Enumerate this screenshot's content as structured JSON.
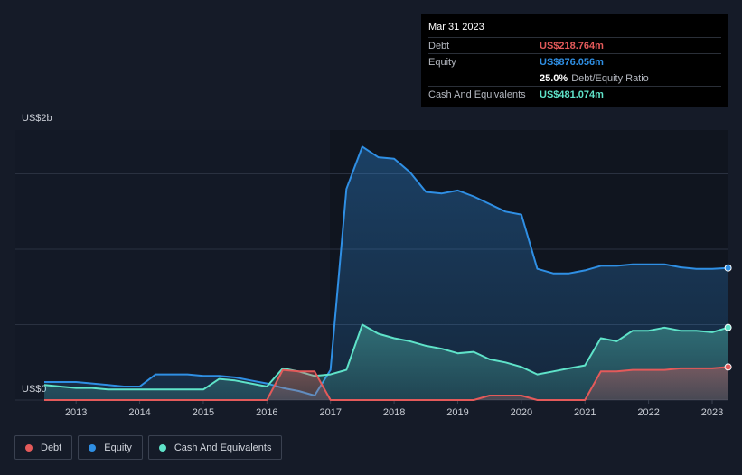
{
  "chart_data": {
    "type": "area",
    "x": [
      2012.5,
      2012.75,
      2013,
      2013.25,
      2013.5,
      2013.75,
      2014,
      2014.25,
      2014.5,
      2014.75,
      2015,
      2015.25,
      2015.5,
      2015.75,
      2016,
      2016.25,
      2016.5,
      2016.75,
      2017,
      2017.25,
      2017.5,
      2017.75,
      2018,
      2018.25,
      2018.5,
      2018.75,
      2019,
      2019.25,
      2019.5,
      2019.75,
      2020,
      2020.25,
      2020.5,
      2020.75,
      2021,
      2021.25,
      2021.5,
      2021.75,
      2022,
      2022.25,
      2022.5,
      2022.75,
      2023,
      2023.25
    ],
    "xlim": [
      2012.5,
      2023.25
    ],
    "xticks": [
      2013,
      2014,
      2015,
      2016,
      2017,
      2018,
      2019,
      2020,
      2021,
      2022,
      2023
    ],
    "ylim": [
      0,
      2
    ],
    "yticks": [
      {
        "value": 0,
        "label": "US$0"
      },
      {
        "value": 2,
        "label": "US$2b"
      }
    ],
    "grid": true,
    "series": [
      {
        "name": "Equity",
        "color": "#2f8fe4",
        "values": [
          0.12,
          0.12,
          0.12,
          0.11,
          0.1,
          0.09,
          0.09,
          0.17,
          0.17,
          0.17,
          0.16,
          0.16,
          0.15,
          0.13,
          0.11,
          0.08,
          0.06,
          0.03,
          0.2,
          1.4,
          1.68,
          1.61,
          1.6,
          1.51,
          1.38,
          1.37,
          1.39,
          1.35,
          1.3,
          1.25,
          1.23,
          0.87,
          0.84,
          0.84,
          0.86,
          0.89,
          0.89,
          0.9,
          0.9,
          0.9,
          0.88,
          0.87,
          0.87,
          0.876
        ]
      },
      {
        "name": "Cash And Equivalents",
        "color": "#5fe3c9",
        "values": [
          0.1,
          0.09,
          0.08,
          0.08,
          0.07,
          0.07,
          0.07,
          0.07,
          0.07,
          0.07,
          0.07,
          0.14,
          0.13,
          0.11,
          0.09,
          0.21,
          0.19,
          0.16,
          0.17,
          0.2,
          0.5,
          0.44,
          0.41,
          0.39,
          0.36,
          0.34,
          0.31,
          0.32,
          0.27,
          0.25,
          0.22,
          0.17,
          0.19,
          0.21,
          0.23,
          0.41,
          0.39,
          0.46,
          0.46,
          0.48,
          0.46,
          0.46,
          0.45,
          0.481
        ]
      },
      {
        "name": "Debt",
        "color": "#e45a5a",
        "values": [
          0,
          0,
          0,
          0,
          0,
          0,
          0,
          0,
          0,
          0,
          0,
          0,
          0,
          0,
          0,
          0.2,
          0.19,
          0.19,
          0,
          0,
          0,
          0,
          0,
          0,
          0,
          0,
          0,
          0,
          0.03,
          0.03,
          0.03,
          0,
          0,
          0,
          0,
          0.19,
          0.19,
          0.2,
          0.2,
          0.2,
          0.21,
          0.21,
          0.21,
          0.219
        ]
      }
    ],
    "legend": [
      "Debt",
      "Equity",
      "Cash And Equivalents"
    ],
    "tooltip": {
      "date": "Mar 31 2023",
      "rows": [
        {
          "label": "Debt",
          "value": "US$218.764m"
        },
        {
          "label": "Equity",
          "value": "US$876.056m"
        },
        {
          "value": "25.0%",
          "note": "Debt/Equity Ratio"
        },
        {
          "label": "Cash And Equivalents",
          "value": "US$481.074m"
        }
      ]
    }
  }
}
